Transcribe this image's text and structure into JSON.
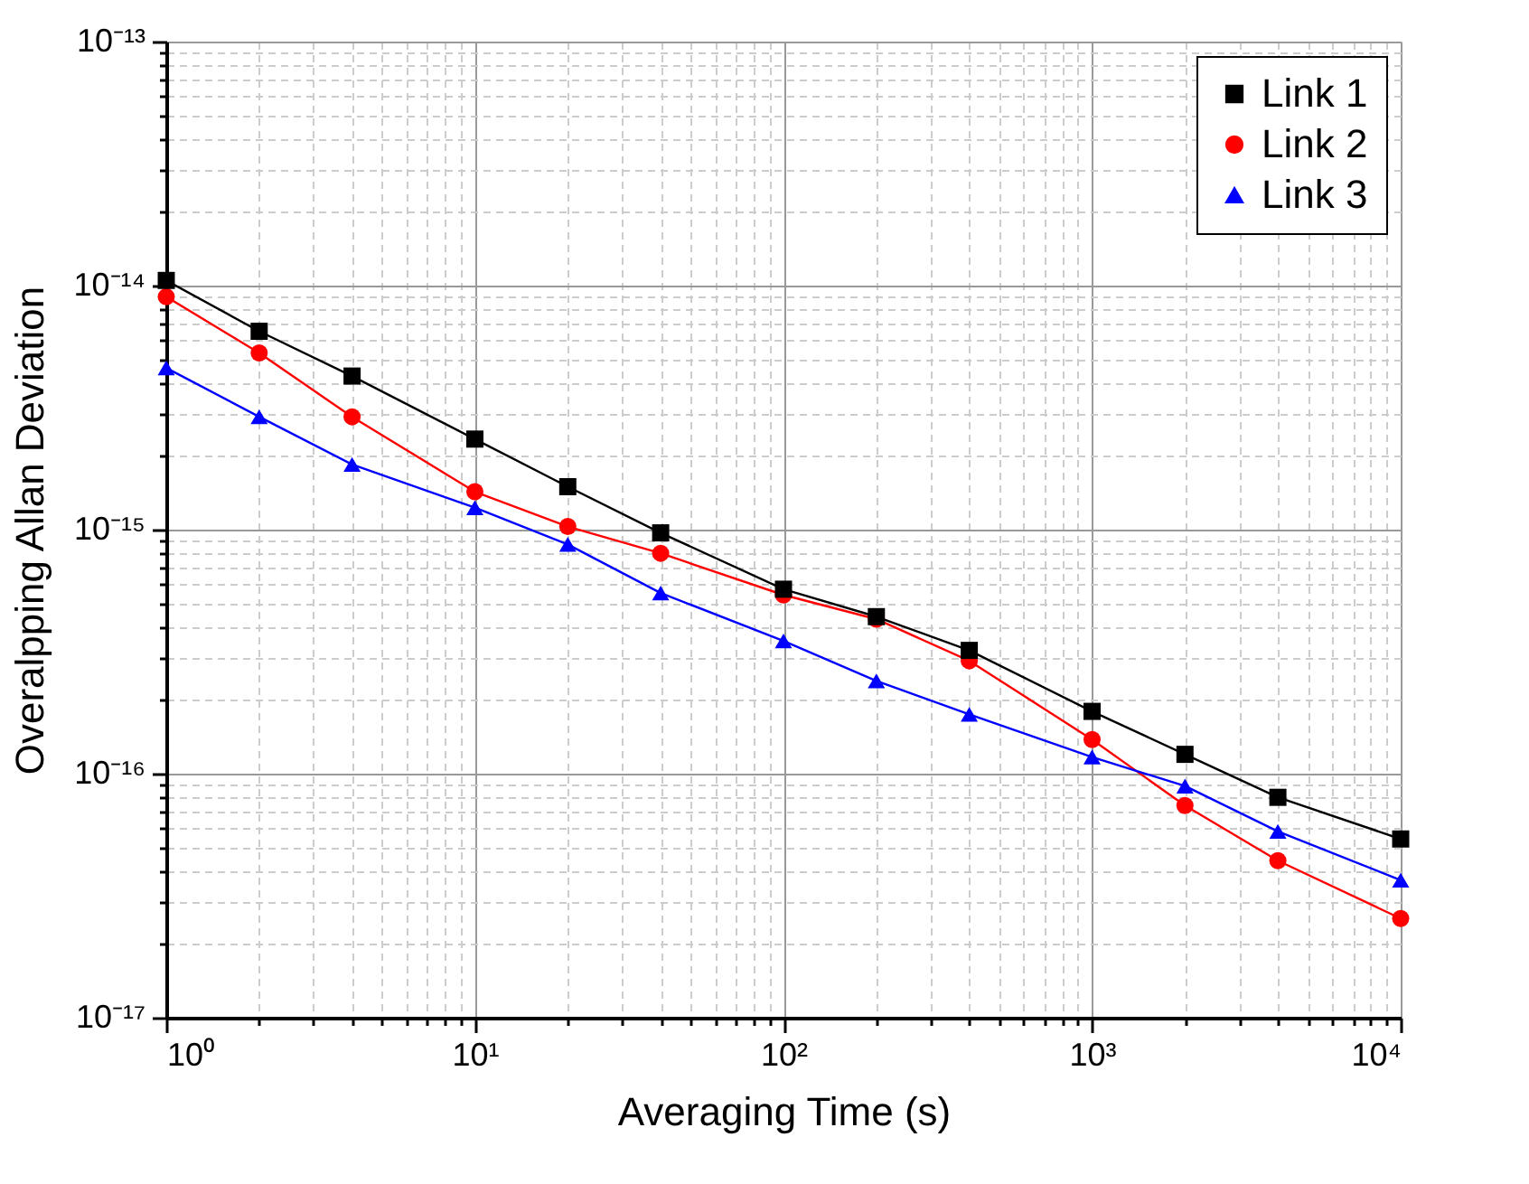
{
  "chart_data": {
    "type": "line",
    "xlabel": "Averaging Time (s)",
    "ylabel": "Overalpping Allan Deviation",
    "x": [
      1,
      2,
      4,
      10,
      20,
      40,
      100,
      200,
      400,
      1000,
      2000,
      4000,
      10000
    ],
    "series": [
      {
        "name": "Link 1",
        "color": "#000000",
        "marker": "square",
        "values": [
          1.05e-14,
          6.5e-15,
          4.26e-15,
          2.35e-15,
          1.5e-15,
          9.7e-16,
          5.7e-16,
          4.4e-16,
          3.2e-16,
          1.8e-16,
          1.2e-16,
          8e-17,
          5.4e-17
        ]
      },
      {
        "name": "Link 2",
        "color": "#ff0000",
        "marker": "circle",
        "values": [
          9e-15,
          5.3e-15,
          2.9e-15,
          1.43e-15,
          1.03e-15,
          8e-16,
          5.4e-16,
          4.3e-16,
          2.9e-16,
          1.38e-16,
          7.4e-17,
          4.4e-17,
          2.55e-17
        ]
      },
      {
        "name": "Link 3",
        "color": "#0000ff",
        "marker": "triangle",
        "values": [
          4.6e-15,
          2.9e-15,
          1.85e-15,
          1.23e-15,
          8.7e-16,
          5.5e-16,
          3.5e-16,
          2.4e-16,
          1.75e-16,
          1.17e-16,
          8.9e-17,
          5.8e-17,
          3.66e-17
        ]
      }
    ],
    "log": "xy",
    "grid": true,
    "legend": "top right",
    "line_style": "solid",
    "xlim": [
      1,
      10000
    ],
    "ylim": [
      1e-17,
      1e-13
    ],
    "xticks": [
      {
        "value": 1,
        "label": "10⁰"
      },
      {
        "value": 2,
        "label": null
      },
      {
        "value": 3,
        "label": null
      },
      {
        "value": 4,
        "label": null
      },
      {
        "value": 5,
        "label": null
      },
      {
        "value": 6,
        "label": null
      },
      {
        "value": 7,
        "label": null
      },
      {
        "value": 8,
        "label": null
      },
      {
        "value": 9,
        "label": null
      },
      {
        "value": 10,
        "label": "10¹"
      },
      {
        "value": 20,
        "label": null
      },
      {
        "value": 30,
        "label": null
      },
      {
        "value": 40,
        "label": null
      },
      {
        "value": 50,
        "label": null
      },
      {
        "value": 60,
        "label": null
      },
      {
        "value": 70,
        "label": null
      },
      {
        "value": 80,
        "label": null
      },
      {
        "value": 90,
        "label": null
      },
      {
        "value": 100,
        "label": "10²"
      },
      {
        "value": 200,
        "label": null
      },
      {
        "value": 300,
        "label": null
      },
      {
        "value": 400,
        "label": null
      },
      {
        "value": 500,
        "label": null
      },
      {
        "value": 600,
        "label": null
      },
      {
        "value": 700,
        "label": null
      },
      {
        "value": 800,
        "label": null
      },
      {
        "value": 900,
        "label": null
      },
      {
        "value": 1000,
        "label": "10³"
      },
      {
        "value": 2000,
        "label": null
      },
      {
        "value": 3000,
        "label": null
      },
      {
        "value": 4000,
        "label": null
      },
      {
        "value": 5000,
        "label": null
      },
      {
        "value": 6000,
        "label": null
      },
      {
        "value": 7000,
        "label": null
      },
      {
        "value": 8000,
        "label": null
      },
      {
        "value": 9000,
        "label": null
      },
      {
        "value": 10000,
        "label": "10⁴"
      }
    ],
    "yticks": [
      {
        "value": 1e-17,
        "label": "10⁻¹⁷"
      },
      {
        "value": 2e-17,
        "label": null
      },
      {
        "value": 3e-17,
        "label": null
      },
      {
        "value": 4e-17,
        "label": null
      },
      {
        "value": 5e-17,
        "label": null
      },
      {
        "value": 6e-17,
        "label": null
      },
      {
        "value": 7e-17,
        "label": null
      },
      {
        "value": 8e-17,
        "label": null
      },
      {
        "value": 9e-17,
        "label": null
      },
      {
        "value": 1e-16,
        "label": "10⁻¹⁶"
      },
      {
        "value": 2e-16,
        "label": null
      },
      {
        "value": 3e-16,
        "label": null
      },
      {
        "value": 4e-16,
        "label": null
      },
      {
        "value": 5e-16,
        "label": null
      },
      {
        "value": 6e-16,
        "label": null
      },
      {
        "value": 7e-16,
        "label": null
      },
      {
        "value": 8e-16,
        "label": null
      },
      {
        "value": 9e-16,
        "label": null
      },
      {
        "value": 1e-15,
        "label": "10⁻¹⁵"
      },
      {
        "value": 2e-15,
        "label": null
      },
      {
        "value": 3e-15,
        "label": null
      },
      {
        "value": 4e-15,
        "label": null
      },
      {
        "value": 5e-15,
        "label": null
      },
      {
        "value": 6e-15,
        "label": null
      },
      {
        "value": 7e-15,
        "label": null
      },
      {
        "value": 8e-15,
        "label": null
      },
      {
        "value": 9e-15,
        "label": null
      },
      {
        "value": 1e-14,
        "label": "10⁻¹⁴"
      },
      {
        "value": 2e-14,
        "label": null
      },
      {
        "value": 3e-14,
        "label": null
      },
      {
        "value": 4e-14,
        "label": null
      },
      {
        "value": 5e-14,
        "label": null
      },
      {
        "value": 6e-14,
        "label": null
      },
      {
        "value": 7e-14,
        "label": null
      },
      {
        "value": 8e-14,
        "label": null
      },
      {
        "value": 9e-14,
        "label": null
      },
      {
        "value": 1e-13,
        "label": "10⁻¹³"
      }
    ]
  }
}
